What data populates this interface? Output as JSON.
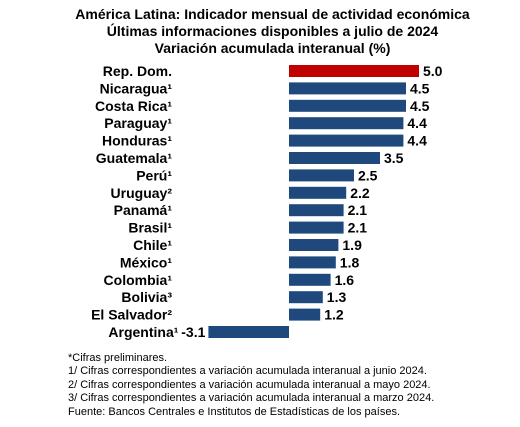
{
  "chart_data": {
    "type": "bar",
    "orientation": "horizontal",
    "title": "América Latina: Indicador mensual de actividad económica",
    "subtitle": "Últimas informaciones disponibles a julio de 2024",
    "subtitle2": "Variación acumulada interanual (%)",
    "categories": [
      "Rep. Dom.",
      "Nicaragua¹",
      "Costa Rica¹",
      "Paraguay¹",
      "Honduras¹",
      "Guatemala¹",
      "Perú¹",
      "Uruguay²",
      "Panamá¹",
      "Brasil¹",
      "Chile¹",
      "México¹",
      "Colombia¹",
      "Bolivia³",
      "El Salvador²",
      "Argentina¹"
    ],
    "values": [
      5.0,
      4.5,
      4.5,
      4.4,
      4.4,
      3.5,
      2.5,
      2.2,
      2.1,
      2.1,
      1.9,
      1.8,
      1.6,
      1.3,
      1.2,
      -3.1
    ],
    "value_labels": [
      "5.0",
      "4.5",
      "4.5",
      "4.4",
      "4.4",
      "3.5",
      "2.5",
      "2.2",
      "2.1",
      "2.1",
      "1.9",
      "1.8",
      "1.6",
      "1.3",
      "1.2",
      "-3.1"
    ],
    "highlight_index": 0,
    "colors": {
      "highlight": "#C00000",
      "default": "#1F497D"
    },
    "grid": false,
    "legend": "none"
  },
  "notes": [
    "*Cifras preliminares.",
    "1/ Cifras correspondientes a variación acumulada interanual a junio 2024.",
    "2/ Cifras correspondientes a variación acumulada interanual a mayo 2024.",
    "3/ Cifras correspondientes a variación acumulada interanual a marzo 2024.",
    "Fuente: Bancos Centrales e Institutos de Estadísticas de los países."
  ]
}
